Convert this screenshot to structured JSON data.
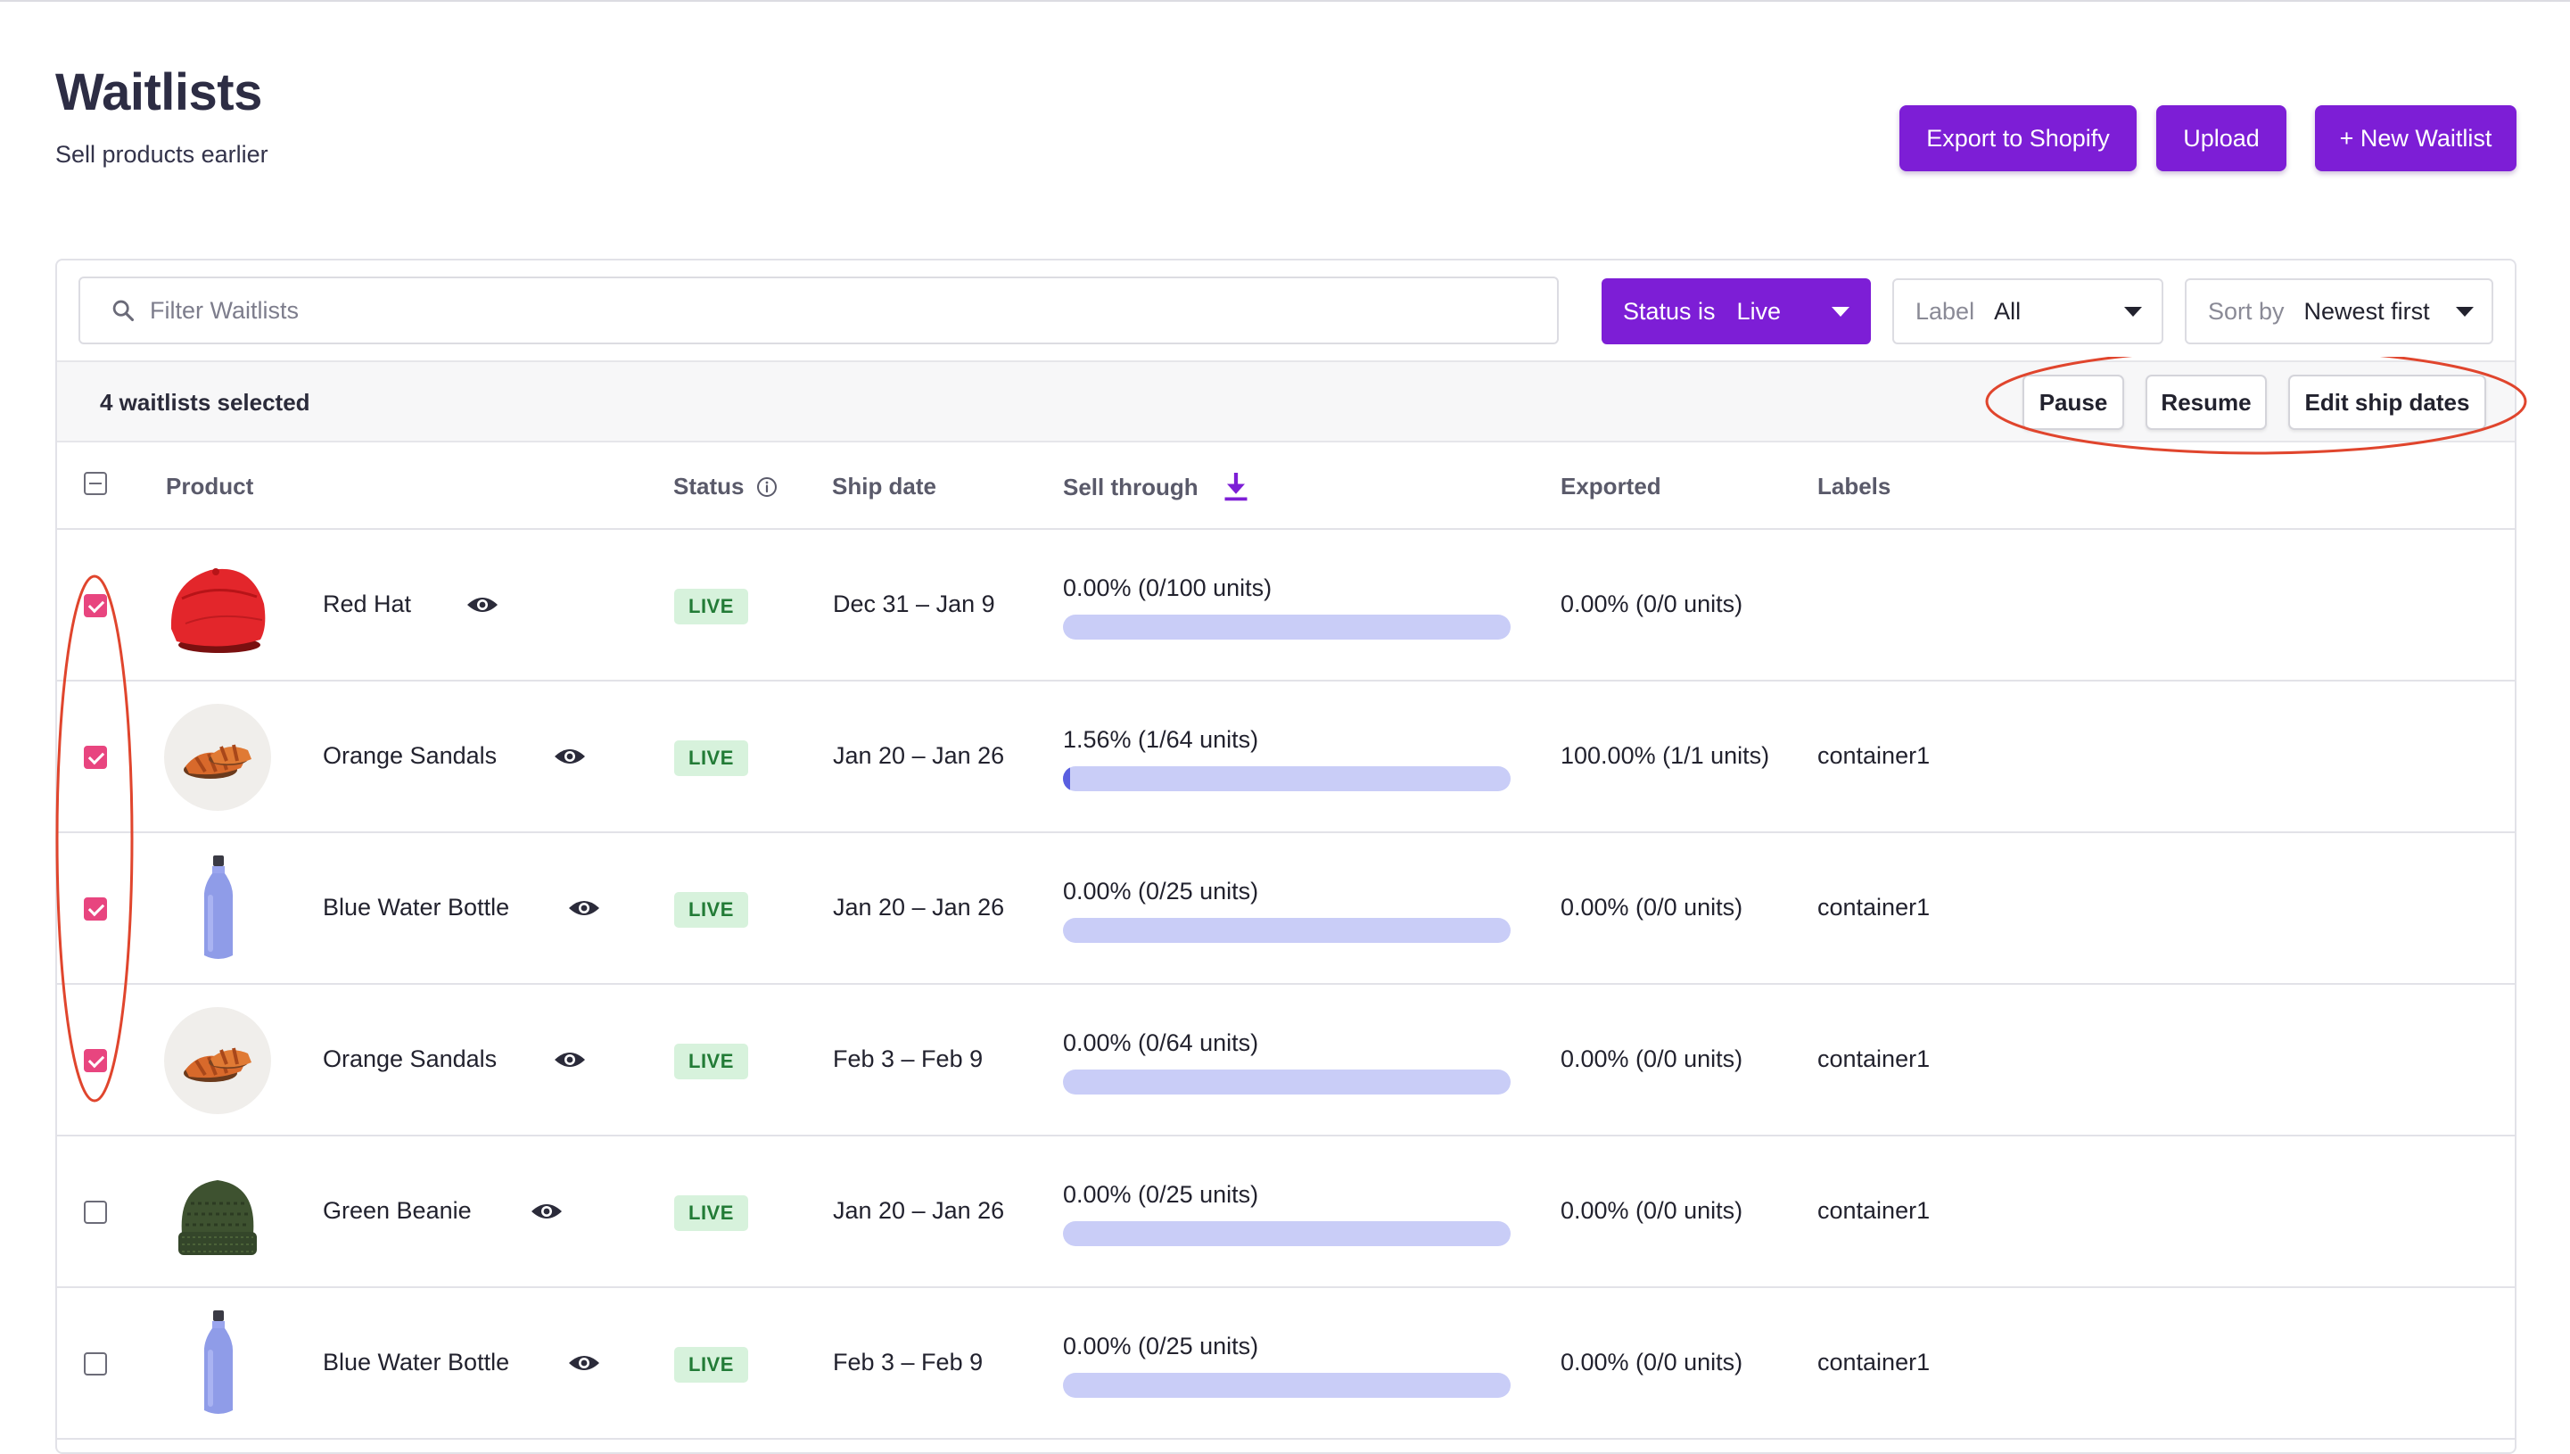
{
  "header": {
    "title": "Waitlists",
    "subtitle": "Sell products earlier",
    "buttons": {
      "export": "Export to Shopify",
      "upload": "Upload",
      "new_waitlist": "+ New Waitlist"
    }
  },
  "filters": {
    "search_placeholder": "Filter Waitlists",
    "status": {
      "label": "Status is",
      "value": "Live"
    },
    "label": {
      "label": "Label",
      "value": "All"
    },
    "sort": {
      "label": "Sort by",
      "value": "Newest first"
    }
  },
  "bulk": {
    "selected_text": "4 waitlists selected",
    "pause": "Pause",
    "resume": "Resume",
    "edit_ship_dates": "Edit ship dates"
  },
  "table": {
    "columns": {
      "product": "Product",
      "status": "Status",
      "ship_date": "Ship date",
      "sell_through": "Sell through",
      "exported": "Exported",
      "labels": "Labels"
    },
    "rows": [
      {
        "selected": true,
        "product": "Red Hat",
        "image": "red-hat",
        "status": "LIVE",
        "ship_date": "Dec 31 – Jan 9",
        "sell_through": "0.00% (0/100 units)",
        "sell_fraction": 0.0,
        "exported": "0.00% (0/0 units)",
        "label": ""
      },
      {
        "selected": true,
        "product": "Orange Sandals",
        "image": "orange-sandals",
        "status": "LIVE",
        "ship_date": "Jan 20 – Jan 26",
        "sell_through": "1.56% (1/64 units)",
        "sell_fraction": 0.0156,
        "exported": "100.00% (1/1 units)",
        "label": "container1"
      },
      {
        "selected": true,
        "product": "Blue Water Bottle",
        "image": "blue-water-bottle",
        "status": "LIVE",
        "ship_date": "Jan 20 – Jan 26",
        "sell_through": "0.00% (0/25 units)",
        "sell_fraction": 0.0,
        "exported": "0.00% (0/0 units)",
        "label": "container1"
      },
      {
        "selected": true,
        "product": "Orange Sandals",
        "image": "orange-sandals",
        "status": "LIVE",
        "ship_date": "Feb 3 – Feb 9",
        "sell_through": "0.00% (0/64 units)",
        "sell_fraction": 0.0,
        "exported": "0.00% (0/0 units)",
        "label": "container1"
      },
      {
        "selected": false,
        "product": "Green Beanie",
        "image": "green-beanie",
        "status": "LIVE",
        "ship_date": "Jan 20 – Jan 26",
        "sell_through": "0.00% (0/25 units)",
        "sell_fraction": 0.0,
        "exported": "0.00% (0/0 units)",
        "label": "container1"
      },
      {
        "selected": false,
        "product": "Blue Water Bottle",
        "image": "blue-water-bottle",
        "status": "LIVE",
        "ship_date": "Feb 3 – Feb 9",
        "sell_through": "0.00% (0/25 units)",
        "sell_fraction": 0.0,
        "exported": "0.00% (0/0 units)",
        "label": "container1"
      }
    ]
  },
  "icons": {
    "search": "search-icon",
    "info": "info-icon",
    "download": "download-icon",
    "eye": "eye-icon",
    "caret": "chevron-down-icon"
  },
  "colors": {
    "primary": "#7d1ed6",
    "checkbox_checked": "#e8457f",
    "live_badge_bg": "#d7f2dc",
    "live_badge_text": "#227b36",
    "progress_track": "#c9cdf7",
    "annotation": "#e0452d"
  }
}
